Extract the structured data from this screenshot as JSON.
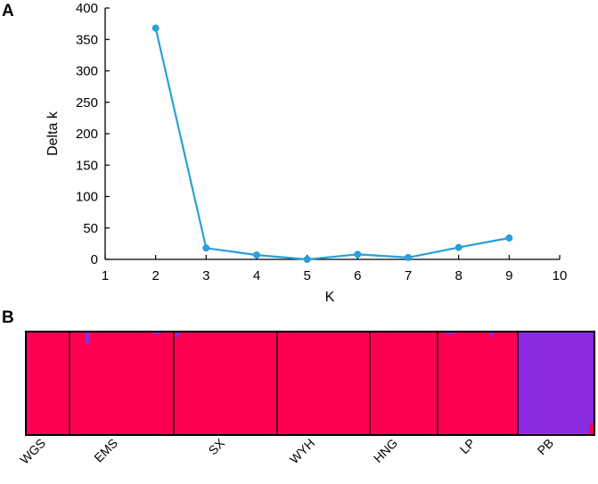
{
  "panels": [
    {
      "letter": "A"
    },
    {
      "letter": "B"
    }
  ],
  "chart_data": [
    {
      "type": "line",
      "panel": "A",
      "xlabel": "K",
      "ylabel": "Delta k",
      "xlim": [
        1,
        10
      ],
      "ylim": [
        0,
        400
      ],
      "xticks": [
        1,
        2,
        3,
        4,
        5,
        6,
        7,
        8,
        9,
        10
      ],
      "yticks": [
        0,
        50,
        100,
        150,
        200,
        250,
        300,
        350,
        400
      ],
      "grid": false,
      "series": [
        {
          "color": "#2a9fd8",
          "x": [
            2,
            3,
            4,
            5,
            6,
            7,
            8,
            9
          ],
          "y": [
            368,
            18,
            7,
            0,
            8,
            3,
            19,
            34
          ]
        }
      ]
    },
    {
      "type": "bar",
      "panel": "B",
      "stacked": true,
      "ylim": [
        0,
        1
      ],
      "colors": {
        "cluster1": "#ff0050",
        "cluster2": "#8a2be2"
      },
      "populations": [
        {
          "label": "WGS",
          "cluster1": 1.0,
          "cluster2": 0.0
        },
        {
          "label": "EMS",
          "cluster1": 0.995,
          "cluster2": 0.005
        },
        {
          "label": "SX",
          "cluster1": 1.0,
          "cluster2": 0.0
        },
        {
          "label": "WYH",
          "cluster1": 1.0,
          "cluster2": 0.0
        },
        {
          "label": "HNG",
          "cluster1": 1.0,
          "cluster2": 0.0
        },
        {
          "label": "LP",
          "cluster1": 0.997,
          "cluster2": 0.003
        },
        {
          "label": "PB",
          "cluster1": 0.01,
          "cluster2": 0.99
        }
      ]
    }
  ]
}
